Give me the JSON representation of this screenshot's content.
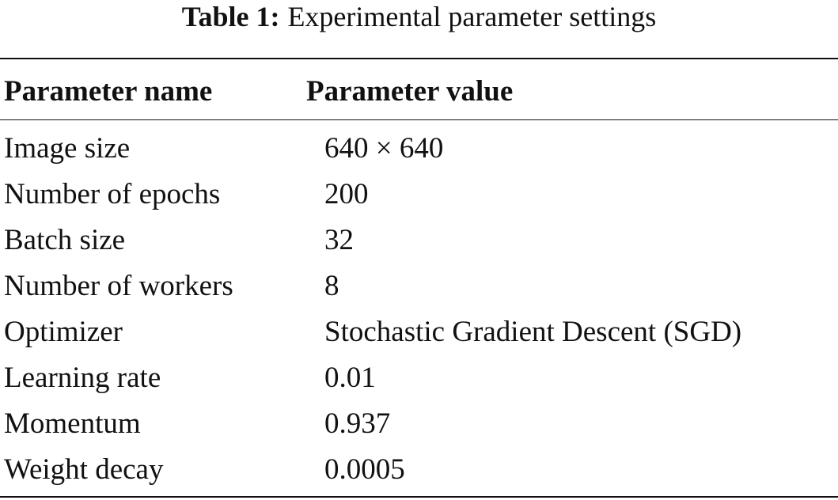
{
  "caption": {
    "label": "Table 1:",
    "text": "Experimental parameter settings"
  },
  "table": {
    "header": [
      "Parameter name",
      "Parameter value"
    ],
    "rows": [
      [
        "Image size",
        "640 × 640"
      ],
      [
        "Number of epochs",
        "200"
      ],
      [
        "Batch size",
        "32"
      ],
      [
        "Number of workers",
        "8"
      ],
      [
        "Optimizer",
        "Stochastic Gradient Descent (SGD)"
      ],
      [
        "Learning rate",
        "0.01"
      ],
      [
        "Momentum",
        "0.937"
      ],
      [
        "Weight decay",
        "0.0005"
      ]
    ]
  }
}
